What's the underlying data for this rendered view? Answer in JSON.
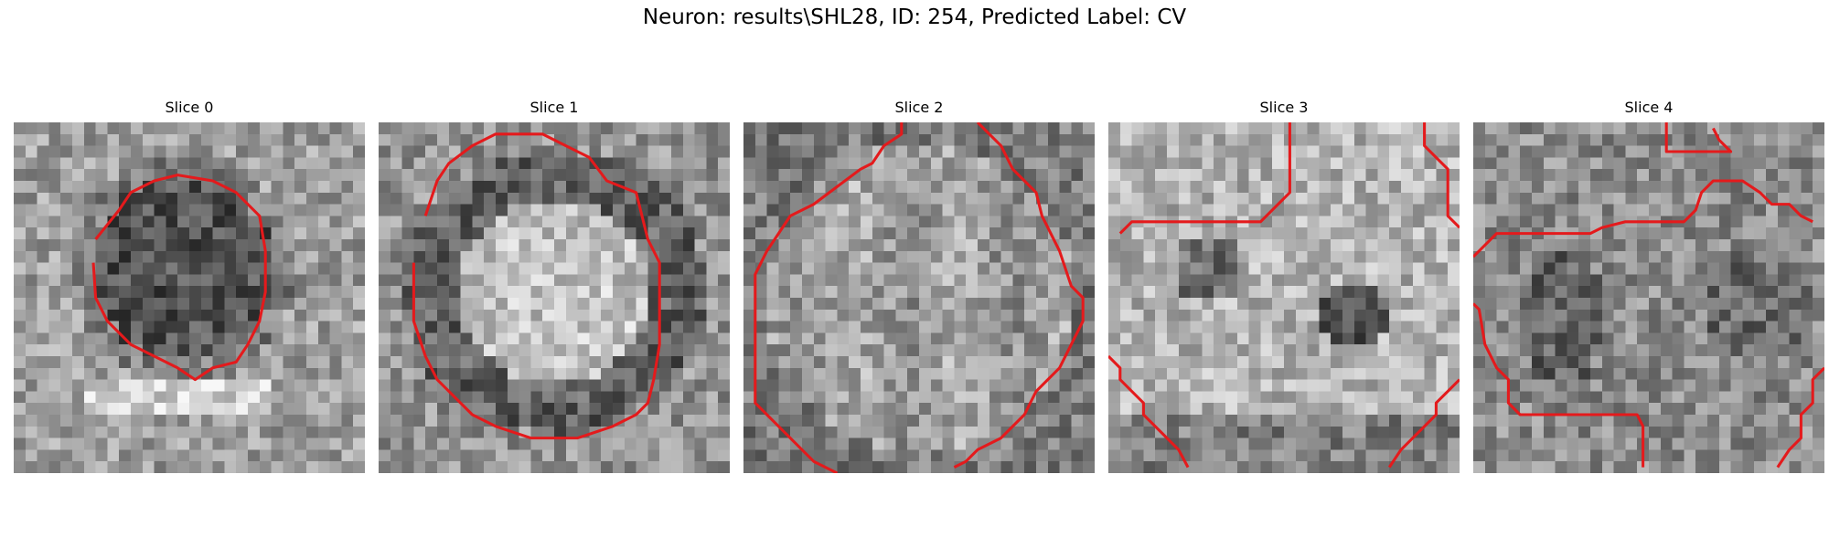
{
  "figure": {
    "title": "Neuron: results\\SHL28, ID: 254, Predicted Label: CV",
    "contour_color": "#e41a1c",
    "panels": [
      {
        "title": "Slice 0",
        "grid": 30,
        "seed": 11,
        "type": "dark-blob"
      },
      {
        "title": "Slice 1",
        "grid": 30,
        "seed": 23,
        "type": "bright-blob"
      },
      {
        "title": "Slice 2",
        "grid": 30,
        "seed": 37,
        "type": "ring"
      },
      {
        "title": "Slice 3",
        "grid": 30,
        "seed": 51,
        "type": "bright-twin"
      },
      {
        "title": "Slice 4",
        "grid": 30,
        "seed": 73,
        "type": "noisy"
      }
    ]
  }
}
